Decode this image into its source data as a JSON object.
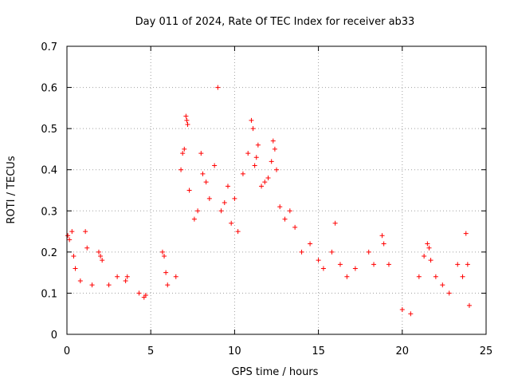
{
  "chart_data": {
    "type": "scatter",
    "title": "Day 011 of 2024, Rate Of TEC Index for receiver ab33",
    "xlabel": "GPS time / hours",
    "ylabel": "ROTI / TECUs",
    "xlim": [
      0,
      25
    ],
    "ylim": [
      0,
      0.7
    ],
    "xticks": [
      "0",
      "5",
      "10",
      "15",
      "20",
      "25"
    ],
    "yticks": [
      "0",
      "0.1",
      "0.2",
      "0.3",
      "0.4",
      "0.5",
      "0.6",
      "0.7"
    ],
    "grid": true,
    "marker": "+",
    "color": "#ff0000",
    "series": [
      {
        "points": [
          [
            0.05,
            0.24
          ],
          [
            0.15,
            0.23
          ],
          [
            0.3,
            0.25
          ],
          [
            0.4,
            0.19
          ],
          [
            0.5,
            0.16
          ],
          [
            0.8,
            0.13
          ],
          [
            1.1,
            0.25
          ],
          [
            1.2,
            0.21
          ],
          [
            1.5,
            0.12
          ],
          [
            1.9,
            0.2
          ],
          [
            2.0,
            0.19
          ],
          [
            2.1,
            0.18
          ],
          [
            2.5,
            0.12
          ],
          [
            3.0,
            0.14
          ],
          [
            3.5,
            0.13
          ],
          [
            3.6,
            0.14
          ],
          [
            4.3,
            0.1
          ],
          [
            4.6,
            0.09
          ],
          [
            4.7,
            0.095
          ],
          [
            5.7,
            0.2
          ],
          [
            5.8,
            0.19
          ],
          [
            5.9,
            0.15
          ],
          [
            6.0,
            0.12
          ],
          [
            6.5,
            0.14
          ],
          [
            6.8,
            0.4
          ],
          [
            6.9,
            0.44
          ],
          [
            7.0,
            0.45
          ],
          [
            7.1,
            0.53
          ],
          [
            7.15,
            0.52
          ],
          [
            7.2,
            0.51
          ],
          [
            7.3,
            0.35
          ],
          [
            7.6,
            0.28
          ],
          [
            7.8,
            0.3
          ],
          [
            8.0,
            0.44
          ],
          [
            8.1,
            0.39
          ],
          [
            8.3,
            0.37
          ],
          [
            8.5,
            0.33
          ],
          [
            8.8,
            0.41
          ],
          [
            9.0,
            0.6
          ],
          [
            9.2,
            0.3
          ],
          [
            9.4,
            0.32
          ],
          [
            9.6,
            0.36
          ],
          [
            9.8,
            0.27
          ],
          [
            10.0,
            0.33
          ],
          [
            10.2,
            0.25
          ],
          [
            10.5,
            0.39
          ],
          [
            10.8,
            0.44
          ],
          [
            11.0,
            0.52
          ],
          [
            11.1,
            0.5
          ],
          [
            11.2,
            0.41
          ],
          [
            11.3,
            0.43
          ],
          [
            11.4,
            0.46
          ],
          [
            11.6,
            0.36
          ],
          [
            11.8,
            0.37
          ],
          [
            12.0,
            0.38
          ],
          [
            12.2,
            0.42
          ],
          [
            12.3,
            0.47
          ],
          [
            12.4,
            0.45
          ],
          [
            12.5,
            0.4
          ],
          [
            12.7,
            0.31
          ],
          [
            13.0,
            0.28
          ],
          [
            13.3,
            0.3
          ],
          [
            13.6,
            0.26
          ],
          [
            14.0,
            0.2
          ],
          [
            14.5,
            0.22
          ],
          [
            15.0,
            0.18
          ],
          [
            15.3,
            0.16
          ],
          [
            15.8,
            0.2
          ],
          [
            16.0,
            0.27
          ],
          [
            16.3,
            0.17
          ],
          [
            16.7,
            0.14
          ],
          [
            17.2,
            0.16
          ],
          [
            18.0,
            0.2
          ],
          [
            18.3,
            0.17
          ],
          [
            18.8,
            0.24
          ],
          [
            18.9,
            0.22
          ],
          [
            19.2,
            0.17
          ],
          [
            20.0,
            0.06
          ],
          [
            20.5,
            0.05
          ],
          [
            21.0,
            0.14
          ],
          [
            21.3,
            0.19
          ],
          [
            21.5,
            0.22
          ],
          [
            21.6,
            0.21
          ],
          [
            21.7,
            0.18
          ],
          [
            22.0,
            0.14
          ],
          [
            22.4,
            0.12
          ],
          [
            22.8,
            0.1
          ],
          [
            23.3,
            0.17
          ],
          [
            23.6,
            0.14
          ],
          [
            23.8,
            0.245
          ],
          [
            23.9,
            0.17
          ],
          [
            24.0,
            0.07
          ]
        ]
      }
    ]
  }
}
